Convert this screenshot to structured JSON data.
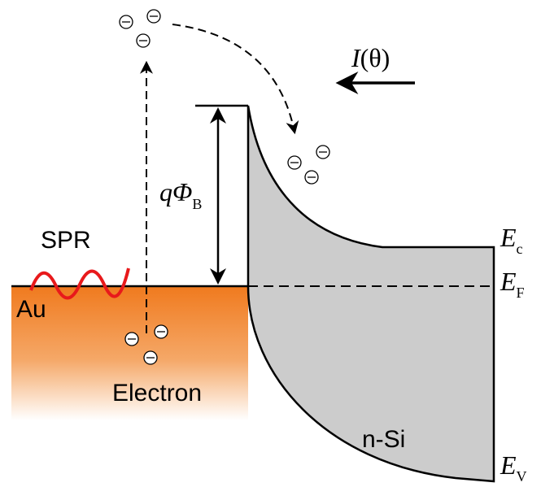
{
  "labels": {
    "spr": "SPR",
    "au": "Au",
    "electron": "Electron",
    "nsi": "n-Si",
    "intensity": {
      "main": "I",
      "arg": "(θ)"
    },
    "barrier": {
      "main": "qΦ",
      "sub": "B"
    },
    "ec": {
      "main": "E",
      "sub": "c"
    },
    "ef": {
      "main": "E",
      "sub": "F"
    },
    "ev": {
      "main": "E",
      "sub": "V"
    }
  }
}
